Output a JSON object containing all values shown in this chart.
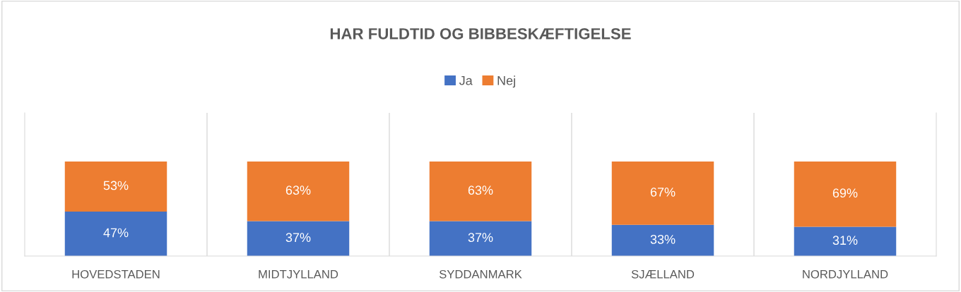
{
  "chart_data": {
    "type": "bar",
    "title": "HAR FULDTID OG BIBBESKÆFTIGELSE",
    "categories": [
      "HOVEDSTADEN",
      "MIDTJYLLAND",
      "SYDDANMARK",
      "SJÆLLAND",
      "NORDJYLLAND"
    ],
    "series": [
      {
        "name": "Ja",
        "color": "#4472c4",
        "values": [
          47,
          37,
          37,
          33,
          31
        ],
        "value_labels": [
          "47%",
          "37%",
          "37%",
          "33%",
          "31%"
        ]
      },
      {
        "name": "Nej",
        "color": "#ed7d31",
        "values": [
          53,
          63,
          63,
          67,
          69
        ],
        "value_labels": [
          "53%",
          "63%",
          "63%",
          "67%",
          "69%"
        ]
      }
    ],
    "stacked": true,
    "legend": "top",
    "grid": "x"
  }
}
